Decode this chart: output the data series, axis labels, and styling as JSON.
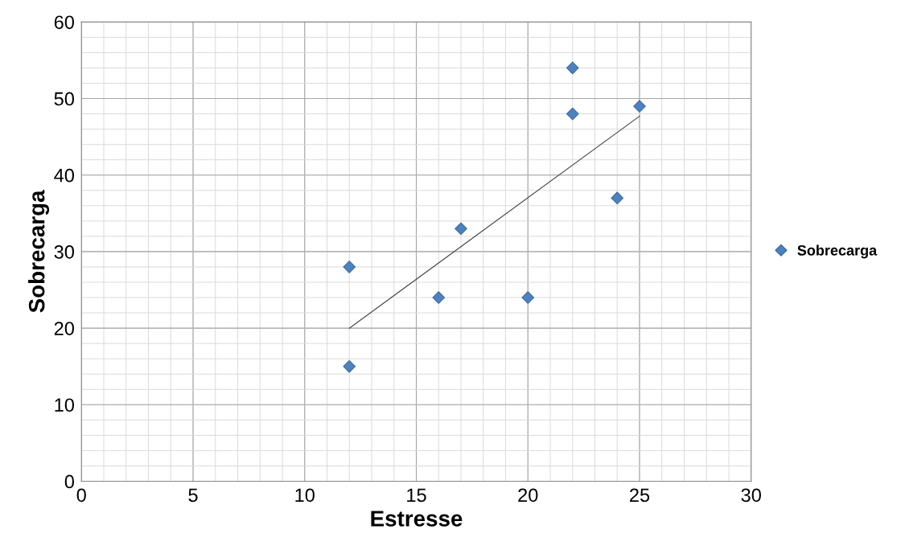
{
  "chart_data": {
    "type": "scatter",
    "xlabel": "Estresse",
    "ylabel": "Sobrecarga",
    "series": [
      {
        "name": "Sobrecarga",
        "marker": "diamond",
        "color": "#4f81bd",
        "x": [
          12,
          12,
          16,
          17,
          20,
          22,
          22,
          24,
          25
        ],
        "values": [
          28,
          15,
          24,
          33,
          24,
          54,
          48,
          37,
          49
        ]
      },
      {
        "type": "line",
        "marker": "none",
        "color": "#404040",
        "x": [
          12,
          25
        ],
        "values": [
          20,
          47.7
        ]
      }
    ],
    "xlim": [
      0,
      30
    ],
    "xticks": [
      0,
      5,
      10,
      15,
      20,
      25,
      30
    ],
    "ylim": [
      0,
      60
    ],
    "yticks": [
      0,
      10,
      20,
      30,
      40,
      50,
      60
    ],
    "grid": true,
    "legend": "right"
  }
}
